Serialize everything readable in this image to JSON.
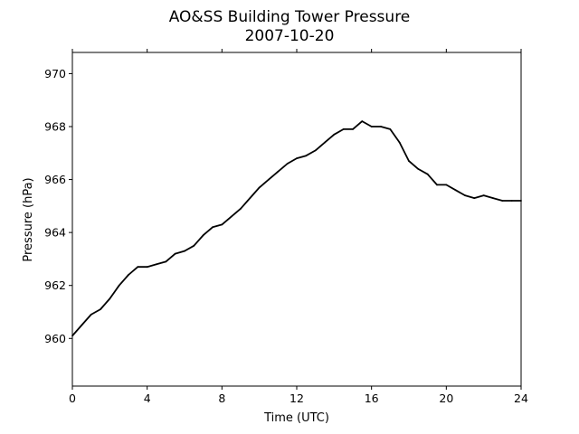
{
  "chart_data": {
    "type": "line",
    "title": "AO&SS Building Tower Pressure",
    "subtitle": "2007-10-20",
    "xlabel": "Time (UTC)",
    "ylabel": "Pressure (hPa)",
    "xlim": [
      0,
      24
    ],
    "ylim": [
      958.2,
      970.8
    ],
    "xticks": [
      0,
      4,
      8,
      12,
      16,
      20,
      24
    ],
    "yticks": [
      960,
      962,
      964,
      966,
      968,
      970
    ],
    "grid": false,
    "legend": "none",
    "line_color": "#000000",
    "series": [
      {
        "x": [
          0,
          0.5,
          1,
          1.5,
          2,
          2.5,
          3,
          3.5,
          4,
          4.5,
          5,
          5.5,
          6,
          6.5,
          7,
          7.5,
          8,
          8.5,
          9,
          9.5,
          10,
          10.5,
          11,
          11.5,
          12,
          12.5,
          13,
          13.5,
          14,
          14.5,
          15,
          15.5,
          16,
          16.5,
          17,
          17.5,
          18,
          18.5,
          19,
          19.5,
          20,
          20.5,
          21,
          21.5,
          22,
          22.5,
          23,
          23.5,
          24
        ],
        "y": [
          960.1,
          960.5,
          960.9,
          961.1,
          961.5,
          962.0,
          962.4,
          962.7,
          962.7,
          962.8,
          962.9,
          963.2,
          963.3,
          963.5,
          963.9,
          964.2,
          964.3,
          964.6,
          964.9,
          965.3,
          965.7,
          966.0,
          966.3,
          966.6,
          966.8,
          966.9,
          967.1,
          967.4,
          967.7,
          967.9,
          967.9,
          968.2,
          968.0,
          968.0,
          967.9,
          967.4,
          966.7,
          966.4,
          966.2,
          965.8,
          965.8,
          965.6,
          965.4,
          965.3,
          965.4,
          965.3,
          965.2,
          965.2,
          965.2
        ]
      }
    ]
  }
}
